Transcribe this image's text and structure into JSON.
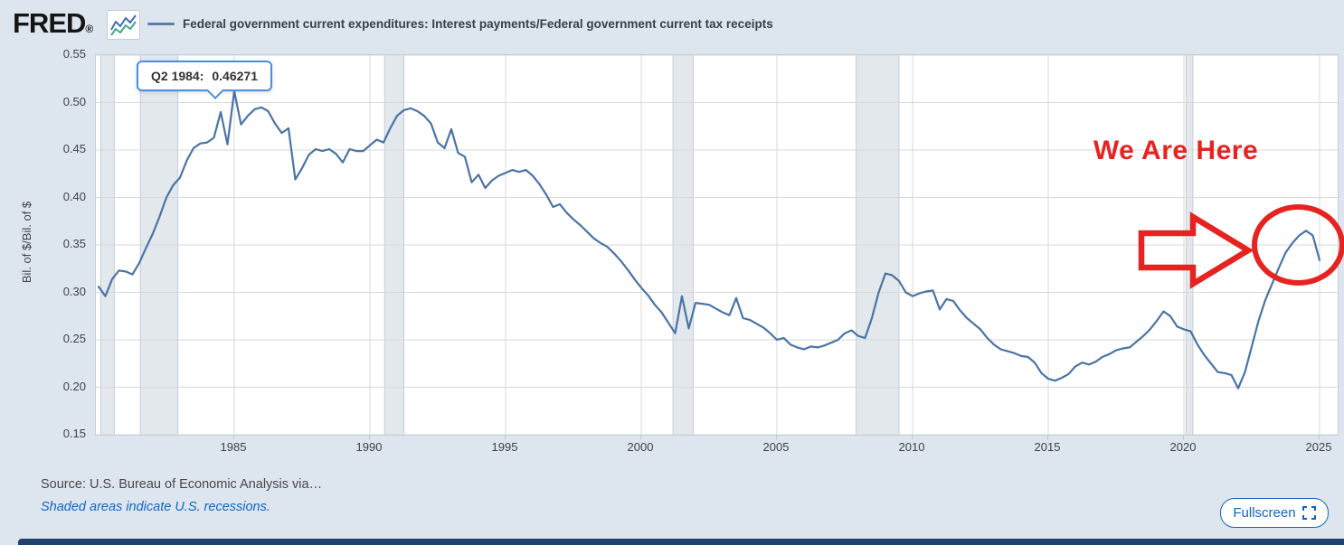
{
  "colors": {
    "page_bg": "#dde6ef",
    "plot_bg": "#ffffff",
    "grid": "#d8d8d8",
    "recession": "#e3e8ed",
    "recession_edge": "#c6ccd3",
    "line": "#4a74a6",
    "legend_swatch": "#5b7fa6",
    "annotation_red": "#e62321",
    "link_blue": "#1166c4",
    "tooltip_border": "#4a8fde",
    "navy_bar": "#20406d"
  },
  "header": {
    "logo": "FRED",
    "logo_mark": "®",
    "legend_label": "Federal government current expenditures: Interest payments/Federal government current tax receipts"
  },
  "tooltip": {
    "label": "Q2 1984:",
    "value": "0.46271"
  },
  "annotation": {
    "text": "We Are Here"
  },
  "footer": {
    "source": "Source: U.S. Bureau of Economic Analysis via…",
    "recessions_note": "Shaded areas indicate U.S. recessions.",
    "fullscreen_label": "Fullscreen"
  },
  "chart_data": {
    "type": "line",
    "title": "Federal government current expenditures: Interest payments/Federal government current tax receipts",
    "xlabel": "",
    "ylabel": "Bil. of $/Bil. of $",
    "ylim": [
      0.15,
      0.55
    ],
    "xlim": [
      1979.9,
      2025.667
    ],
    "yticks": [
      0.15,
      0.2,
      0.25,
      0.3,
      0.35,
      0.4,
      0.45,
      0.5,
      0.55
    ],
    "xticks": [
      1985,
      1990,
      1995,
      2000,
      2005,
      2010,
      2015,
      2020,
      2025
    ],
    "grid": "on",
    "legend_position": "top",
    "x_unit": "quarterly",
    "x_start": 1980.0,
    "x_step": 0.25,
    "recessions": [
      [
        1980.08,
        1980.58
      ],
      [
        1981.54,
        1982.92
      ],
      [
        1990.54,
        1991.25
      ],
      [
        2001.17,
        2001.92
      ],
      [
        2007.92,
        2009.5
      ],
      [
        2020.08,
        2020.33
      ]
    ],
    "highlighted_point": {
      "period": "Q2 1984",
      "x": 1984.25,
      "value": 0.46271
    },
    "series": [
      {
        "name": "Federal government current expenditures: Interest payments/Federal government current tax receipts",
        "color": "#4a74a6",
        "values": [
          0.306,
          0.296,
          0.314,
          0.323,
          0.322,
          0.319,
          0.331,
          0.347,
          0.362,
          0.38,
          0.4,
          0.413,
          0.421,
          0.439,
          0.452,
          0.457,
          0.458,
          0.463,
          0.49,
          0.456,
          0.512,
          0.477,
          0.486,
          0.493,
          0.495,
          0.491,
          0.478,
          0.468,
          0.473,
          0.419,
          0.431,
          0.445,
          0.451,
          0.449,
          0.451,
          0.446,
          0.437,
          0.451,
          0.449,
          0.449,
          0.455,
          0.461,
          0.458,
          0.473,
          0.486,
          0.492,
          0.494,
          0.491,
          0.486,
          0.478,
          0.458,
          0.452,
          0.472,
          0.447,
          0.443,
          0.416,
          0.424,
          0.41,
          0.418,
          0.423,
          0.426,
          0.429,
          0.427,
          0.429,
          0.423,
          0.414,
          0.403,
          0.39,
          0.393,
          0.384,
          0.377,
          0.371,
          0.364,
          0.357,
          0.352,
          0.348,
          0.341,
          0.333,
          0.324,
          0.314,
          0.305,
          0.297,
          0.287,
          0.279,
          0.268,
          0.257,
          0.296,
          0.262,
          0.289,
          0.288,
          0.287,
          0.283,
          0.279,
          0.276,
          0.294,
          0.273,
          0.271,
          0.267,
          0.263,
          0.257,
          0.25,
          0.252,
          0.245,
          0.242,
          0.24,
          0.243,
          0.242,
          0.244,
          0.247,
          0.25,
          0.257,
          0.26,
          0.254,
          0.252,
          0.273,
          0.3,
          0.32,
          0.318,
          0.312,
          0.3,
          0.296,
          0.299,
          0.301,
          0.302,
          0.282,
          0.293,
          0.291,
          0.281,
          0.273,
          0.267,
          0.261,
          0.252,
          0.245,
          0.24,
          0.238,
          0.236,
          0.233,
          0.232,
          0.226,
          0.215,
          0.209,
          0.207,
          0.21,
          0.214,
          0.222,
          0.226,
          0.224,
          0.227,
          0.232,
          0.235,
          0.239,
          0.241,
          0.242,
          0.248,
          0.254,
          0.261,
          0.27,
          0.28,
          0.275,
          0.264,
          0.261,
          0.259,
          0.245,
          0.234,
          0.225,
          0.216,
          0.215,
          0.213,
          0.199,
          0.216,
          0.243,
          0.27,
          0.292,
          0.309,
          0.326,
          0.342,
          0.352,
          0.36,
          0.365,
          0.36,
          0.334
        ]
      }
    ]
  }
}
